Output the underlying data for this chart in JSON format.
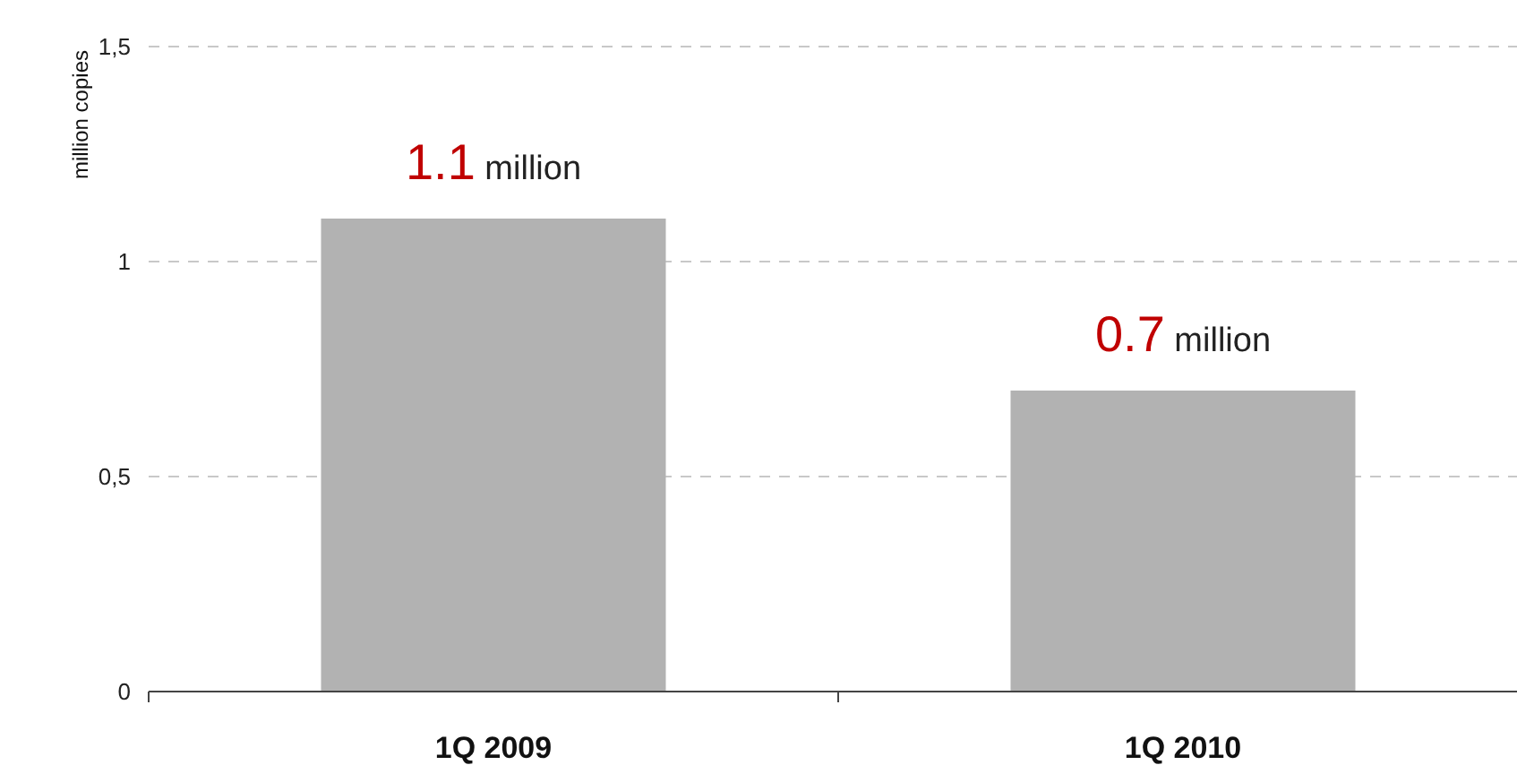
{
  "chart_data": {
    "type": "bar",
    "ylabel": "million copies",
    "categories": [
      "1Q 2009",
      "1Q 2010"
    ],
    "values": [
      1.1,
      0.7
    ],
    "color": "#b2b2b2",
    "value_labels": [
      "1.1 million",
      "0.7 million"
    ],
    "ylim": [
      0,
      1.5
    ],
    "yticks": [
      0,
      {
        "value": 0.5,
        "label": "0,5"
      },
      1,
      {
        "value": 1.5,
        "label": "1,5"
      }
    ],
    "grid": "y"
  }
}
